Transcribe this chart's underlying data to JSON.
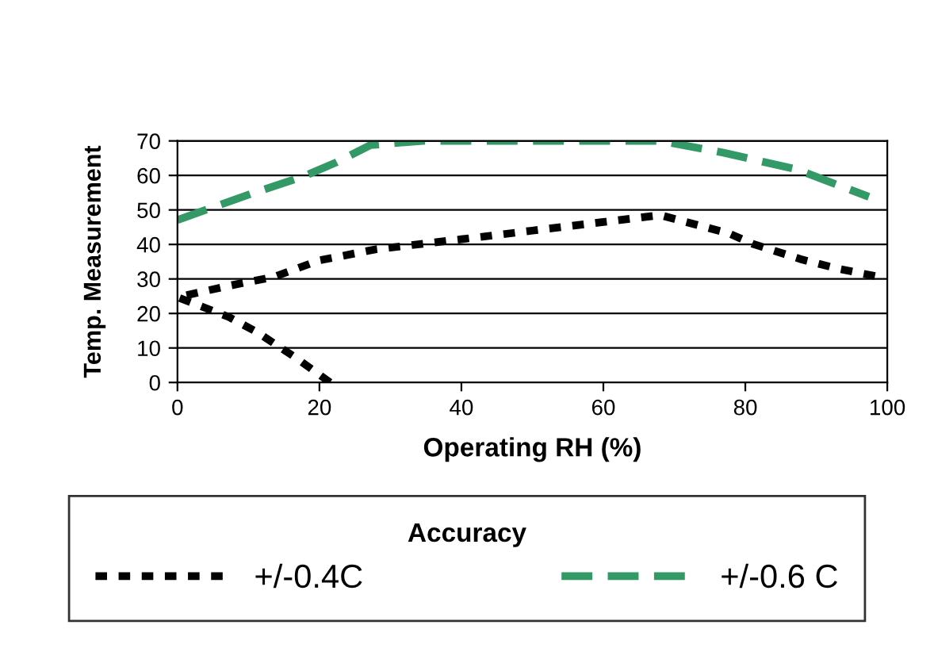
{
  "chart_data": {
    "type": "line",
    "xlabel": "Operating RH (%)",
    "ylabel": "Temp. Measurement",
    "legend_title": "Accuracy",
    "legend": "bottom",
    "grid": "y",
    "marker": "none",
    "xlim": [
      0,
      100
    ],
    "xticks": [
      0,
      20,
      40,
      60,
      80,
      100
    ],
    "ylim": [
      0,
      70
    ],
    "yticks": [
      0,
      10,
      20,
      30,
      40,
      50,
      60,
      70
    ],
    "series": [
      {
        "name": "+/-0.4C",
        "color": "#000000",
        "line_style": "dotted",
        "x": [
          21.5,
          16.8,
          11.2,
          7.2,
          0,
          7.2,
          13.6,
          20,
          28,
          40,
          50,
          60,
          68,
          77.7,
          81,
          88,
          93,
          98.6
        ],
        "values": [
          0,
          7,
          14.6,
          19,
          24.7,
          28,
          30.6,
          35.4,
          38.6,
          41.5,
          44,
          46.5,
          48.5,
          43.2,
          40.2,
          35.6,
          33,
          30.7
        ]
      },
      {
        "name": "+/-0.6 C",
        "color": "#339966",
        "line_style": "dashed",
        "x": [
          0,
          10.4,
          17.6,
          22.4,
          27.2,
          34.5,
          50,
          68,
          76.9,
          87.3,
          97.4
        ],
        "values": [
          47.1,
          54.7,
          59.6,
          63.8,
          68.8,
          70,
          70,
          70,
          66.6,
          61.7,
          53.8
        ]
      }
    ]
  }
}
